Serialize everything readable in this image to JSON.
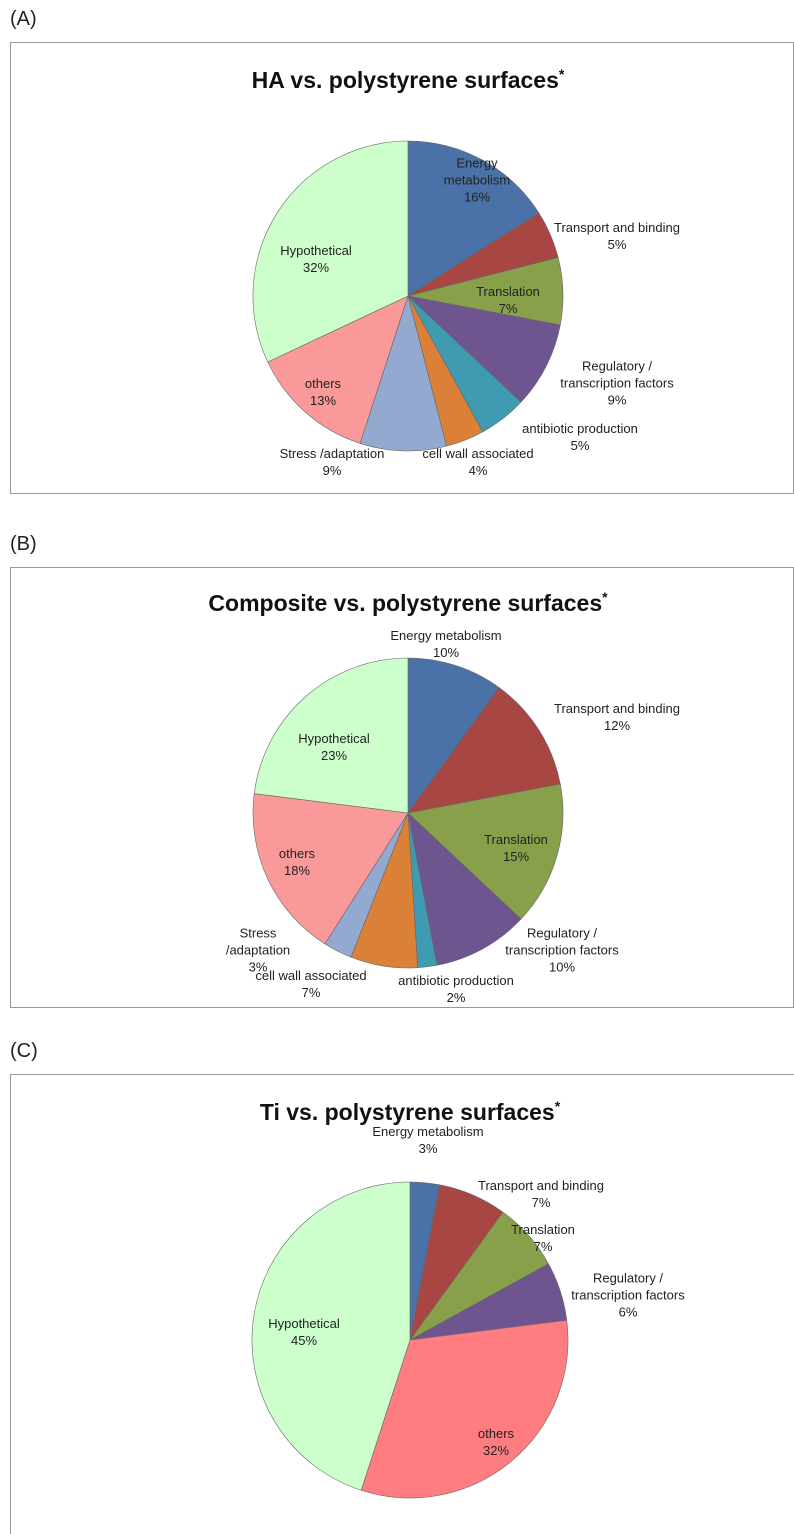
{
  "chart_data": [
    {
      "type": "pie",
      "panel": "(A)",
      "title": "HA vs. polystyrene surfaces",
      "title_mark": "*",
      "categories": [
        "Energy metabolism",
        "Transport and binding",
        "Translation",
        "Regulatory / transcription factors",
        "antibiotic production",
        "cell wall associated",
        "Stress /adaptation",
        "others",
        "Hypothetical"
      ],
      "values": [
        16,
        5,
        7,
        9,
        5,
        4,
        9,
        13,
        32
      ],
      "value_labels": [
        "16%",
        "5%",
        "7%",
        "9%",
        "5%",
        "4%",
        "9%",
        "13%",
        "32%"
      ],
      "colors": [
        "#4a72a8",
        "#a84643",
        "#88a04a",
        "#6f5590",
        "#3e9bb1",
        "#da8137",
        "#93a9d0",
        "#fa9999",
        "#ccffcc"
      ]
    },
    {
      "type": "pie",
      "panel": "(B)",
      "title": "Composite vs. polystyrene surfaces",
      "title_mark": "*",
      "categories": [
        "Energy metabolism",
        "Transport and binding",
        "Translation",
        "Regulatory / transcription factors",
        "antibiotic production",
        "cell wall associated",
        "Stress /adaptation",
        "others",
        "Hypothetical"
      ],
      "values": [
        10,
        12,
        15,
        10,
        2,
        7,
        3,
        18,
        23
      ],
      "value_labels": [
        "10%",
        "12%",
        "15%",
        "10%",
        "2%",
        "7%",
        "3%",
        "18%",
        "23%"
      ],
      "colors": [
        "#4a72a8",
        "#a84643",
        "#88a04a",
        "#6f5590",
        "#3e9bb1",
        "#da8137",
        "#93a9d0",
        "#fa9999",
        "#ccffcc"
      ]
    },
    {
      "type": "pie",
      "panel": "(C)",
      "title": "Ti vs. polystyrene surfaces",
      "title_mark": "*",
      "categories": [
        "Energy metabolism",
        "Transport and binding",
        "Translation",
        "Regulatory / transcription factors",
        "others",
        "Hypothetical"
      ],
      "values": [
        3,
        7,
        7,
        6,
        32,
        45
      ],
      "value_labels": [
        "3%",
        "7%",
        "7%",
        "6%",
        "32%",
        "45%"
      ],
      "colors": [
        "#4a72a8",
        "#a84643",
        "#88a04a",
        "#6f5590",
        "#ff7c80",
        "#ccffcc"
      ]
    }
  ]
}
